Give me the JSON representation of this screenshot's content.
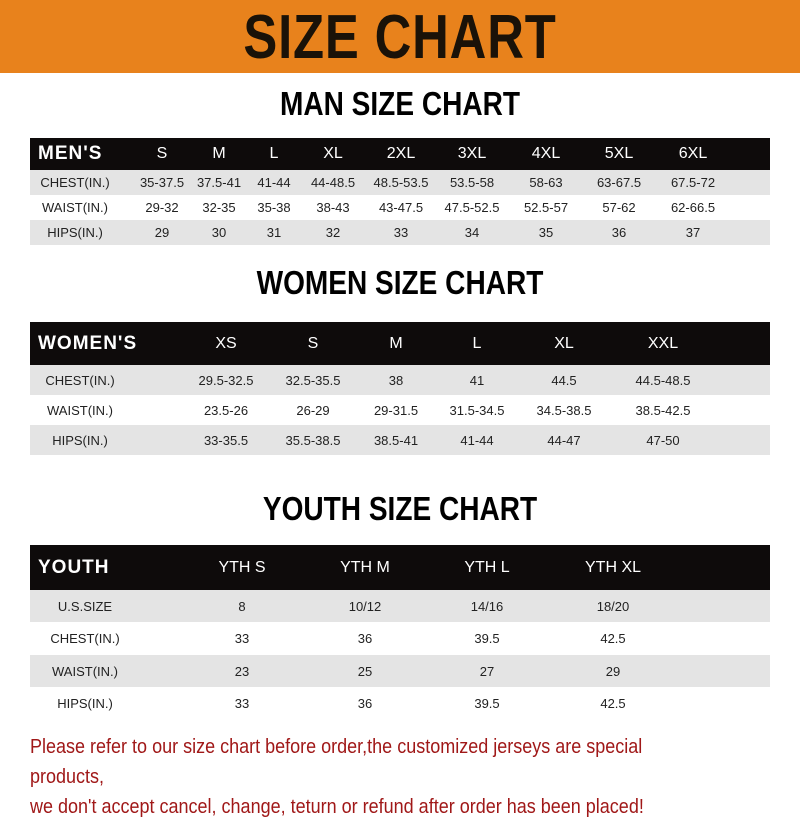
{
  "banner": {
    "title": "SIZE CHART",
    "color": "#e8821c"
  },
  "men": {
    "title": "MAN SIZE CHART",
    "header": [
      "MEN'S",
      "S",
      "M",
      "L",
      "XL",
      "2XL",
      "3XL",
      "4XL",
      "5XL",
      "6XL"
    ],
    "rows": [
      [
        "CHEST(IN.)",
        "35-37.5",
        "37.5-41",
        "41-44",
        "44-48.5",
        "48.5-53.5",
        "53.5-58",
        "58-63",
        "63-67.5",
        "67.5-72"
      ],
      [
        "WAIST(IN.)",
        "29-32",
        "32-35",
        "35-38",
        "38-43",
        "43-47.5",
        "47.5-52.5",
        "52.5-57",
        "57-62",
        "62-66.5"
      ],
      [
        "HIPS(IN.)",
        "29",
        "30",
        "31",
        "32",
        "33",
        "34",
        "35",
        "36",
        "37"
      ]
    ]
  },
  "women": {
    "title": "WOMEN SIZE CHART",
    "header": [
      "WOMEN'S",
      "XS",
      "S",
      "M",
      "L",
      "XL",
      "XXL"
    ],
    "rows": [
      [
        "CHEST(IN.)",
        "29.5-32.5",
        "32.5-35.5",
        "38",
        "41",
        "44.5",
        "44.5-48.5"
      ],
      [
        "WAIST(IN.)",
        "23.5-26",
        "26-29",
        "29-31.5",
        "31.5-34.5",
        "34.5-38.5",
        "38.5-42.5"
      ],
      [
        "HIPS(IN.)",
        "33-35.5",
        "35.5-38.5",
        "38.5-41",
        "41-44",
        "44-47",
        "47-50"
      ]
    ]
  },
  "youth": {
    "title": "YOUTH SIZE CHART",
    "header": [
      "YOUTH",
      "YTH S",
      "YTH M",
      "YTH L",
      "YTH XL"
    ],
    "rows": [
      [
        "U.S.SIZE",
        "8",
        "10/12",
        "14/16",
        "18/20"
      ],
      [
        "CHEST(IN.)",
        "33",
        "36",
        "39.5",
        "42.5"
      ],
      [
        "WAIST(IN.)",
        "23",
        "25",
        "27",
        "29"
      ],
      [
        "HIPS(IN.)",
        "33",
        "36",
        "39.5",
        "42.5"
      ]
    ]
  },
  "note": {
    "line1": "Please refer to our size chart before order,the customized jerseys are special products,",
    "line2": "we don't accept cancel, change, teturn or refund after order has been placed!",
    "color": "#a01818"
  }
}
